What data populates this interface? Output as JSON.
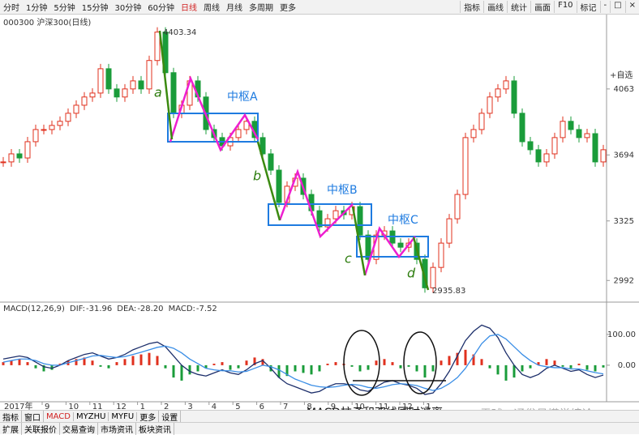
{
  "toolbar": {
    "periods": [
      "分时",
      "1分钟",
      "5分钟",
      "15分钟",
      "30分钟",
      "60分钟",
      "日线",
      "周线",
      "月线",
      "多周期",
      "更多"
    ],
    "active_period": 6,
    "tools": [
      "指标",
      "画线",
      "统计",
      "画面",
      "F10",
      "标记",
      "-",
      "□",
      "×"
    ]
  },
  "chart_data": [
    {
      "type": "candlestick",
      "title": "000300 沪深300(日线)",
      "button": "+自选",
      "up_color": "#e0301e",
      "down_color": "#1a9c3a",
      "values": [
        3655,
        3700,
        3677,
        3768,
        3836,
        3836,
        3859,
        3882,
        3927,
        3972,
        4018,
        4040,
        4176,
        4063,
        4018,
        4063,
        4108,
        4063,
        4222,
        4381,
        4154,
        3927,
        3972,
        4108,
        4018,
        3836,
        3791,
        3745,
        3791,
        3836,
        3882,
        3791,
        3700,
        3609,
        3428,
        3519,
        3564,
        3473,
        3382,
        3292,
        3337,
        3382,
        3360,
        3405,
        3246,
        3110,
        3246,
        3269,
        3201,
        3178,
        3201,
        3110,
        2951,
        3065,
        3201,
        3337,
        3473,
        3791,
        3836,
        3927,
        4018,
        4063,
        4108,
        3927,
        3768,
        3723,
        3655,
        3700,
        3791,
        3882,
        3836,
        3791,
        3813,
        3655,
        3723
      ],
      "high_label": 4403.34,
      "low_label": 2935.83,
      "ylim": [
        2880,
        4420
      ],
      "yticks": [
        2992,
        3325,
        3694,
        4063
      ],
      "x_labels": [
        "2017年",
        "9",
        "10",
        "11",
        "12",
        "1",
        "2",
        "3",
        "4",
        "5",
        "6",
        "7",
        "8",
        "9",
        "10",
        "11",
        "12",
        "1"
      ]
    },
    {
      "type": "macd",
      "title": "MACD(12,26,9)",
      "stats": [
        {
          "name": "DIF:",
          "value": -31.96
        },
        {
          "name": "DEA:",
          "value": {
            "value": -28.2,
            "label": "-28.20"
          }
        },
        {
          "name": "MACD:",
          "value": -7.52
        }
      ],
      "histogram": [
        10,
        15,
        20,
        10,
        -10,
        -20,
        -15,
        5,
        15,
        20,
        25,
        15,
        -5,
        -10,
        10,
        20,
        30,
        35,
        40,
        30,
        -10,
        -40,
        -50,
        -30,
        -20,
        -10,
        5,
        10,
        -15,
        -10,
        15,
        25,
        20,
        -20,
        -40,
        -35,
        -20,
        -25,
        -30,
        -20,
        5,
        10,
        5,
        -5,
        -20,
        -15,
        15,
        20,
        10,
        -10,
        -5,
        -20,
        -40,
        -20,
        15,
        30,
        40,
        50,
        35,
        20,
        -10,
        -30,
        -50,
        -40,
        -20,
        -10,
        10,
        20,
        15,
        -5,
        -10,
        5,
        -15,
        -20,
        -7.52
      ],
      "series": [
        {
          "name": "DIF",
          "color": "#1d2f6b",
          "values": [
            20,
            25,
            30,
            25,
            10,
            -5,
            -10,
            0,
            15,
            25,
            35,
            40,
            30,
            20,
            25,
            35,
            50,
            60,
            70,
            75,
            60,
            30,
            0,
            -20,
            -30,
            -35,
            -25,
            -15,
            -25,
            -30,
            -15,
            5,
            15,
            -10,
            -40,
            -60,
            -70,
            -80,
            -90,
            -85,
            -70,
            -60,
            -60,
            -65,
            -80,
            -85,
            -70,
            -55,
            -50,
            -60,
            -65,
            -75,
            -95,
            -90,
            -60,
            -20,
            30,
            80,
            110,
            130,
            120,
            90,
            40,
            0,
            -30,
            -40,
            -30,
            -10,
            0,
            -10,
            -20,
            -15,
            -30,
            -40,
            -31.96
          ]
        },
        {
          "name": "DEA",
          "color": "#3a8ee6",
          "values": [
            10,
            15,
            20,
            20,
            15,
            5,
            0,
            0,
            8,
            15,
            22,
            30,
            32,
            28,
            25,
            28,
            35,
            42,
            50,
            58,
            62,
            55,
            40,
            20,
            5,
            -10,
            -15,
            -18,
            -18,
            -22,
            -20,
            -10,
            0,
            -5,
            -15,
            -30,
            -45,
            -55,
            -65,
            -70,
            -72,
            -70,
            -65,
            -62,
            -65,
            -72,
            -75,
            -70,
            -63,
            -60,
            -62,
            -66,
            -75,
            -82,
            -75,
            -60,
            -40,
            -10,
            30,
            70,
            95,
            100,
            85,
            60,
            35,
            15,
            0,
            -5,
            -8,
            -8,
            -12,
            -12,
            -18,
            -24,
            -28.2
          ]
        }
      ],
      "ylim": [
        -108,
        160
      ],
      "yticks": [
        {
          "value": 0,
          "label": "0.00"
        },
        {
          "value": 100,
          "label": "100.00"
        }
      ]
    }
  ],
  "annotations": {
    "segments": [
      "a",
      "b",
      "c",
      "d"
    ],
    "centers": [
      "中枢A",
      "中枢B",
      "中枢C"
    ],
    "caption": "MACD柱子和双线同时逃离",
    "watermark": "雪球 · 通俗易懂学缠论"
  },
  "bottom_tabs": {
    "row1": [
      "指标",
      "窗口",
      "MACD",
      "MYZHU",
      "MYFU",
      "更多",
      "设置"
    ],
    "active": 2,
    "row2": [
      "扩展",
      "关联报价",
      "交易查询",
      "市场资讯",
      "板块资讯"
    ]
  }
}
